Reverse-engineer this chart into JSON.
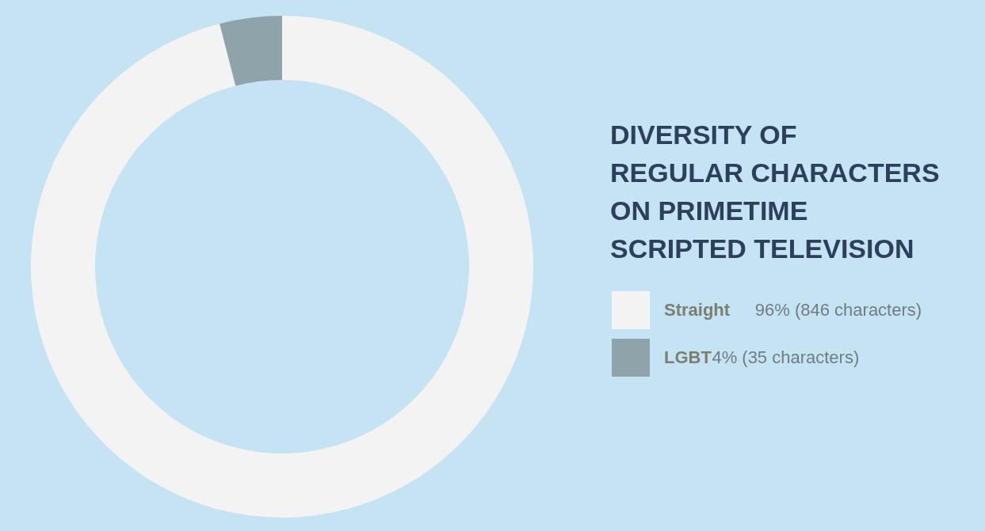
{
  "chart_data": {
    "type": "donut",
    "title": "DIVERSITY OF REGULAR CHARACTERS ON PRIMETIME SCRIPTED TELEVISION",
    "categories": [
      "Straight",
      "LGBT"
    ],
    "values": [
      96,
      4
    ],
    "colors": [
      "#f3f3f3",
      "#8fa3ab"
    ],
    "value_labels": [
      "96% (846 characters)",
      "4% (35 characters)"
    ],
    "legend": "right"
  }
}
